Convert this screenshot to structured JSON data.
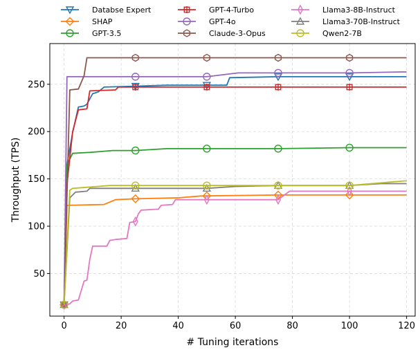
{
  "chart_data": {
    "type": "line",
    "xlabel": "# Tuning iterations",
    "ylabel": "Throughput (TPS)",
    "xlim": [
      -5,
      123
    ],
    "ylim": [
      5,
      293
    ],
    "xticks": [
      0,
      20,
      40,
      60,
      80,
      100,
      120
    ],
    "yticks": [
      50,
      100,
      150,
      200,
      250
    ],
    "grid": true,
    "legend_position": "top, above plot, 3 columns",
    "marker_x": [
      0,
      25,
      50,
      75,
      100
    ],
    "series": [
      {
        "name": "Databse Expert",
        "color": "#1f77b4",
        "marker": "triangle-down",
        "points": [
          [
            0,
            17
          ],
          [
            1,
            165
          ],
          [
            3,
            199
          ],
          [
            5,
            226
          ],
          [
            7,
            227
          ],
          [
            8,
            229
          ],
          [
            10,
            240
          ],
          [
            12,
            242
          ],
          [
            14,
            247
          ],
          [
            25,
            248
          ],
          [
            36,
            249
          ],
          [
            57,
            249
          ],
          [
            58,
            257
          ],
          [
            75,
            258
          ],
          [
            100,
            258
          ],
          [
            120,
            258
          ]
        ]
      },
      {
        "name": "SHAP",
        "color": "#ff7f0e",
        "marker": "diamond",
        "points": [
          [
            0,
            17
          ],
          [
            1,
            122
          ],
          [
            14,
            123
          ],
          [
            18,
            128
          ],
          [
            25,
            129
          ],
          [
            40,
            130
          ],
          [
            48,
            132
          ],
          [
            75,
            133
          ],
          [
            100,
            133
          ],
          [
            120,
            133
          ]
        ]
      },
      {
        "name": "GPT-3.5",
        "color": "#2ca02c",
        "marker": "circle",
        "points": [
          [
            0,
            17
          ],
          [
            1,
            165
          ],
          [
            3,
            177
          ],
          [
            9,
            178
          ],
          [
            13,
            179
          ],
          [
            17,
            180
          ],
          [
            25,
            180
          ],
          [
            36,
            182
          ],
          [
            50,
            182
          ],
          [
            75,
            182
          ],
          [
            100,
            183
          ],
          [
            120,
            183
          ]
        ]
      },
      {
        "name": "GPT-4-Turbo",
        "color": "#d62728",
        "marker": "plus",
        "points": [
          [
            0,
            17
          ],
          [
            1,
            144
          ],
          [
            3,
            200
          ],
          [
            5,
            223
          ],
          [
            8,
            224
          ],
          [
            9,
            243
          ],
          [
            18,
            244
          ],
          [
            19,
            247
          ],
          [
            25,
            247
          ],
          [
            50,
            247
          ],
          [
            75,
            247
          ],
          [
            100,
            247
          ],
          [
            120,
            247
          ]
        ]
      },
      {
        "name": "GPT-4o",
        "color": "#9467bd",
        "marker": "circle",
        "points": [
          [
            0,
            17
          ],
          [
            1,
            258
          ],
          [
            25,
            258
          ],
          [
            50,
            258
          ],
          [
            61,
            262
          ],
          [
            75,
            262
          ],
          [
            100,
            262
          ],
          [
            118,
            263
          ],
          [
            120,
            263
          ]
        ]
      },
      {
        "name": "Claude-3-Opus",
        "color": "#8c564b",
        "marker": "hexagon",
        "points": [
          [
            0,
            17
          ],
          [
            2,
            244
          ],
          [
            5,
            245
          ],
          [
            7,
            259
          ],
          [
            8,
            278
          ],
          [
            25,
            278
          ],
          [
            50,
            278
          ],
          [
            75,
            278
          ],
          [
            100,
            278
          ],
          [
            120,
            278
          ]
        ]
      },
      {
        "name": "Llama3-8B-Instruct",
        "color": "#e377c2",
        "marker": "thin-diamond",
        "points": [
          [
            0,
            17
          ],
          [
            2,
            18
          ],
          [
            3,
            21
          ],
          [
            5,
            22
          ],
          [
            7,
            42
          ],
          [
            8,
            43
          ],
          [
            9,
            65
          ],
          [
            10,
            79
          ],
          [
            15,
            79
          ],
          [
            16,
            85
          ],
          [
            18,
            86
          ],
          [
            22,
            87
          ],
          [
            23,
            104
          ],
          [
            25,
            105
          ],
          [
            26,
            113
          ],
          [
            27,
            117
          ],
          [
            33,
            118
          ],
          [
            34,
            122
          ],
          [
            38,
            123
          ],
          [
            39,
            128
          ],
          [
            43,
            128
          ],
          [
            50,
            128
          ],
          [
            75,
            128
          ],
          [
            79,
            137
          ],
          [
            100,
            137
          ],
          [
            120,
            137
          ]
        ]
      },
      {
        "name": "Llama3-70B-Instruct",
        "color": "#7f7f7f",
        "marker": "triangle-up",
        "points": [
          [
            0,
            17
          ],
          [
            2,
            130
          ],
          [
            4,
            136
          ],
          [
            8,
            137
          ],
          [
            9,
            140
          ],
          [
            25,
            140
          ],
          [
            50,
            140
          ],
          [
            60,
            142
          ],
          [
            75,
            143
          ],
          [
            100,
            143
          ],
          [
            111,
            145
          ],
          [
            120,
            145
          ]
        ]
      },
      {
        "name": "Qwen2-7B",
        "color": "#bcbd22",
        "marker": "circle",
        "points": [
          [
            0,
            17
          ],
          [
            2,
            138
          ],
          [
            3,
            140
          ],
          [
            16,
            143
          ],
          [
            25,
            143
          ],
          [
            50,
            143
          ],
          [
            75,
            143
          ],
          [
            100,
            143
          ],
          [
            116,
            147
          ],
          [
            120,
            148
          ]
        ]
      }
    ]
  }
}
